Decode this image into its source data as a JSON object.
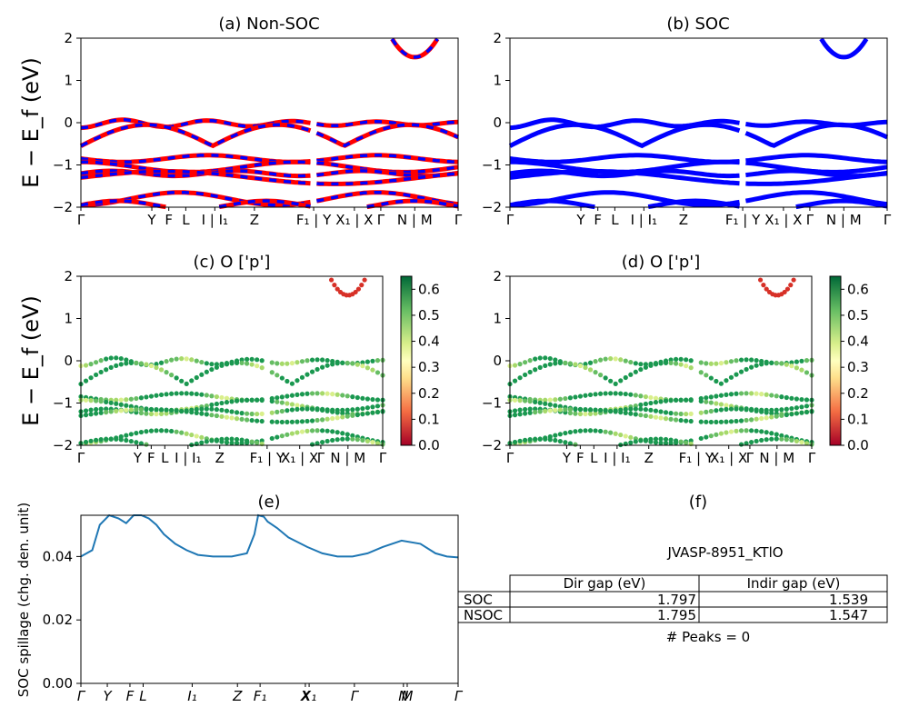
{
  "figure": {
    "ylabel_band": "E − E_f (eV)",
    "ylabel_spillage": "SOC spillage (chg. den. unit)"
  },
  "chart_data": [
    {
      "id": "a",
      "type": "line",
      "title": "(a) Non-SOC",
      "ylim": [
        -2,
        2
      ],
      "yticks": [
        "2",
        "1",
        "0",
        "−1",
        "−2"
      ],
      "kpath": [
        "Γ",
        "Y",
        "F",
        "L",
        "I | I₁",
        "Z",
        "F₁ | Y",
        "X₁ | X",
        "Γ",
        "N | M",
        "Γ"
      ],
      "series_colors": [
        "#ff0000",
        "#0000ff"
      ]
    },
    {
      "id": "b",
      "type": "line",
      "title": "(b) SOC",
      "ylim": [
        -2,
        2
      ],
      "yticks": [
        "2",
        "1",
        "0",
        "−1",
        "−2"
      ],
      "kpath": [
        "Γ",
        "Y",
        "F",
        "L",
        "I | I₁",
        "Z",
        "F₁ | Y",
        "X₁ | X",
        "Γ",
        "N | M",
        "Γ"
      ],
      "series_colors": [
        "#0000ff"
      ]
    },
    {
      "id": "c",
      "type": "scatter",
      "title": "(c)  O ['p']",
      "ylim": [
        -2,
        2
      ],
      "yticks": [
        "2",
        "1",
        "0",
        "−1",
        "−2"
      ],
      "kpath": [
        "Γ",
        "Y",
        "F",
        "L",
        "I | I₁",
        "Z",
        "F₁ | Y",
        "X₁ | X",
        "Γ",
        "N | M",
        "Γ"
      ],
      "colorbar": {
        "colormap": "RdYlGn",
        "range": [
          0,
          0.65
        ],
        "ticks": [
          "0.0",
          "0.1",
          "0.2",
          "0.3",
          "0.4",
          "0.5",
          "0.6"
        ]
      }
    },
    {
      "id": "d",
      "type": "scatter",
      "title": "(d) O ['p']",
      "ylim": [
        -2,
        2
      ],
      "yticks": [
        "2",
        "1",
        "0",
        "−1",
        "−2"
      ],
      "kpath": [
        "Γ",
        "Y",
        "F",
        "L",
        "I | I₁",
        "Z",
        "F₁ | Y",
        "X₁ | X",
        "Γ",
        "N | M",
        "Γ"
      ],
      "colorbar": {
        "colormap": "RdYlGn",
        "range": [
          0,
          0.65
        ],
        "ticks": [
          "0.0",
          "0.1",
          "0.2",
          "0.3",
          "0.4",
          "0.5",
          "0.6"
        ]
      }
    },
    {
      "id": "e",
      "type": "line",
      "title": "(e)",
      "ylabel": "SOC spillage (chg. den. unit)",
      "ylim": [
        0,
        0.053
      ],
      "yticks": [
        "0.04",
        "0.02",
        "0.00"
      ],
      "xticks": [
        "Γ",
        "Y",
        "F",
        "L",
        "I₁",
        "Z",
        "F₁",
        "X",
        "X₁",
        "Γ",
        "N",
        "M",
        "Γ"
      ],
      "color": "#1f77b4",
      "x": [
        0,
        0.03,
        0.05,
        0.075,
        0.1,
        0.12,
        0.14,
        0.16,
        0.18,
        0.2,
        0.22,
        0.25,
        0.28,
        0.31,
        0.35,
        0.4,
        0.44,
        0.46,
        0.47,
        0.485,
        0.495,
        0.52,
        0.55,
        0.6,
        0.64,
        0.68,
        0.72,
        0.76,
        0.8,
        0.85,
        0.9,
        0.94,
        0.97,
        1.0
      ],
      "values": [
        0.04,
        0.042,
        0.05,
        0.053,
        0.052,
        0.0505,
        0.053,
        0.053,
        0.052,
        0.05,
        0.047,
        0.044,
        0.042,
        0.0405,
        0.04,
        0.04,
        0.041,
        0.047,
        0.053,
        0.0525,
        0.051,
        0.049,
        0.046,
        0.043,
        0.041,
        0.04,
        0.04,
        0.041,
        0.043,
        0.045,
        0.044,
        0.041,
        0.04,
        0.0397
      ]
    }
  ],
  "info_panel": {
    "title": "(f)",
    "material": "JVASP-8951_KTlO",
    "table": {
      "headers": [
        "",
        "Dir gap (eV)",
        "Indir gap (eV)"
      ],
      "rows": [
        [
          "SOC",
          "1.797",
          "1.539"
        ],
        [
          "NSOC",
          "1.795",
          "1.547"
        ]
      ]
    },
    "peaks": "# Peaks = 0"
  }
}
